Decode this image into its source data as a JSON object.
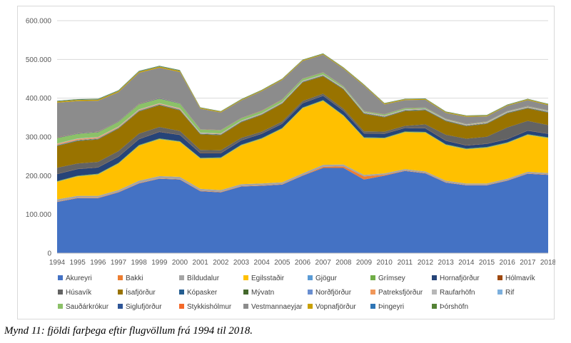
{
  "caption": "Mynd 11: fjöldi farþega eftir flugvöllum frá 1994 til 2018.",
  "chart_data": {
    "type": "area",
    "stacked": true,
    "title": "",
    "xlabel": "",
    "ylabel": "",
    "ylim": [
      0,
      600000
    ],
    "y_ticks": [
      0,
      100000,
      200000,
      300000,
      400000,
      500000,
      600000
    ],
    "y_tick_labels": [
      "0",
      "100.000",
      "200.000",
      "300.000",
      "400.000",
      "500.000",
      "600.000"
    ],
    "categories": [
      "1994",
      "1995",
      "1996",
      "1997",
      "1998",
      "1999",
      "2000",
      "2001",
      "2002",
      "2003",
      "2004",
      "2005",
      "2006",
      "2007",
      "2008",
      "2009",
      "2010",
      "2011",
      "2012",
      "2013",
      "2014",
      "2015",
      "2016",
      "2017",
      "2018"
    ],
    "grid": true,
    "legend_position": "bottom",
    "series": [
      {
        "name": "Akureyri",
        "color": "#4472C4",
        "values": [
          132000,
          142000,
          142000,
          157000,
          180000,
          192000,
          190000,
          160000,
          157000,
          172000,
          174000,
          177000,
          200000,
          220000,
          220000,
          190000,
          200000,
          212000,
          206000,
          182000,
          175000,
          175000,
          187000,
          205000,
          202000
        ]
      },
      {
        "name": "Bakki",
        "color": "#ED7D31",
        "values": [
          1000,
          1000,
          1000,
          1000,
          1000,
          1000,
          1000,
          1000,
          1000,
          1000,
          1000,
          1000,
          1000,
          3000,
          4000,
          8000,
          2000,
          1000,
          1000,
          1000,
          1000,
          1000,
          1000,
          1000,
          1000
        ]
      },
      {
        "name": "Bíldudalur",
        "color": "#A5A5A5",
        "values": [
          6000,
          5000,
          5000,
          5000,
          6000,
          6000,
          6000,
          5000,
          5000,
          5000,
          5000,
          5000,
          5000,
          5000,
          5000,
          4000,
          4000,
          4000,
          4000,
          4000,
          4000,
          4000,
          4000,
          4000,
          4000
        ]
      },
      {
        "name": "Egilsstaðir",
        "color": "#FFC000",
        "values": [
          45000,
          50000,
          55000,
          68000,
          90000,
          95000,
          90000,
          78000,
          82000,
          100000,
          115000,
          138000,
          168000,
          165000,
          125000,
          95000,
          90000,
          95000,
          100000,
          92000,
          88000,
          92000,
          92000,
          95000,
          90000
        ]
      },
      {
        "name": "Gjögur",
        "color": "#5B9BD5",
        "values": [
          500,
          500,
          500,
          500,
          500,
          500,
          500,
          500,
          500,
          500,
          500,
          500,
          500,
          500,
          500,
          500,
          500,
          500,
          500,
          500,
          500,
          500,
          500,
          500,
          500
        ]
      },
      {
        "name": "Grímsey",
        "color": "#70AD47",
        "values": [
          1500,
          1500,
          1500,
          1500,
          1500,
          1500,
          1500,
          1500,
          1500,
          1500,
          1500,
          1500,
          1500,
          1500,
          1500,
          1500,
          1500,
          1500,
          1500,
          1500,
          1500,
          1500,
          1500,
          1500,
          1500
        ]
      },
      {
        "name": "Hornafjörður",
        "color": "#264478",
        "values": [
          18000,
          17000,
          16000,
          16000,
          15000,
          17000,
          16000,
          12000,
          11000,
          11000,
          11000,
          11000,
          11000,
          11000,
          11000,
          10000,
          10000,
          9000,
          9000,
          9000,
          8000,
          8000,
          8000,
          9000,
          9000
        ]
      },
      {
        "name": "Hólmavík",
        "color": "#9E480E",
        "values": [
          500,
          500,
          500,
          500,
          500,
          500,
          500,
          500,
          500,
          500,
          500,
          500,
          500,
          500,
          500,
          500,
          500,
          500,
          500,
          500,
          500,
          500,
          500,
          500,
          500
        ]
      },
      {
        "name": "Húsavík",
        "color": "#636363",
        "values": [
          16000,
          14000,
          14000,
          14000,
          14000,
          12000,
          10000,
          8000,
          7000,
          6000,
          5000,
          5000,
          5000,
          5000,
          5000,
          5000,
          5000,
          5000,
          10000,
          15000,
          17000,
          18000,
          30000,
          25000,
          22000
        ]
      },
      {
        "name": "Ísafjörður",
        "color": "#997300",
        "values": [
          56000,
          58000,
          58000,
          58000,
          57000,
          56000,
          53000,
          40000,
          39000,
          40000,
          43000,
          46000,
          48000,
          45000,
          50000,
          45000,
          37000,
          38000,
          36000,
          35000,
          32000,
          33000,
          36000,
          32000,
          32000
        ]
      },
      {
        "name": "Kópasker",
        "color": "#255E91",
        "values": [
          500,
          500,
          500,
          500,
          500,
          500,
          500,
          500,
          500,
          500,
          500,
          500,
          500,
          500,
          500,
          500,
          500,
          500,
          500,
          500,
          500,
          500,
          500,
          500,
          500
        ]
      },
      {
        "name": "Mývatn",
        "color": "#43682B",
        "values": [
          1000,
          1000,
          1000,
          1000,
          1000,
          1000,
          1000,
          1000,
          1000,
          1000,
          1000,
          1000,
          1000,
          1000,
          1000,
          1000,
          1000,
          1000,
          1000,
          1000,
          1000,
          1000,
          1000,
          1000,
          1000
        ]
      },
      {
        "name": "Norðfjörður",
        "color": "#698ED0",
        "values": [
          1000,
          1000,
          1000,
          1000,
          1000,
          1000,
          1000,
          1000,
          1000,
          1000,
          1000,
          1000,
          1000,
          1000,
          1000,
          1000,
          1000,
          1000,
          1000,
          1000,
          1000,
          1000,
          1000,
          1000,
          1000
        ]
      },
      {
        "name": "Patreksfjörður",
        "color": "#F1975A",
        "values": [
          3000,
          3000,
          3000,
          2000,
          2000,
          2000,
          2000,
          1000,
          1000,
          1000,
          1000,
          1000,
          1000,
          1000,
          1000,
          1000,
          1000,
          1000,
          1000,
          1000,
          1000,
          1000,
          1000,
          1000,
          1000
        ]
      },
      {
        "name": "Raufarhöfn",
        "color": "#B7B7B7",
        "values": [
          500,
          500,
          500,
          500,
          500,
          500,
          500,
          500,
          500,
          500,
          500,
          500,
          500,
          500,
          500,
          500,
          500,
          500,
          500,
          500,
          500,
          500,
          500,
          500,
          500
        ]
      },
      {
        "name": "Rif",
        "color": "#7CAFDD",
        "values": [
          500,
          500,
          500,
          500,
          500,
          500,
          500,
          500,
          500,
          500,
          500,
          500,
          500,
          500,
          500,
          500,
          500,
          500,
          500,
          500,
          500,
          500,
          500,
          500,
          500
        ]
      },
      {
        "name": "Sauðárkrókur",
        "color": "#8CC168",
        "values": [
          14000,
          12000,
          12000,
          12000,
          13000,
          12000,
          12000,
          8000,
          8000,
          6000,
          6000,
          6000,
          5000,
          5000,
          3000,
          2000,
          3000,
          3000,
          2000,
          1000,
          1000,
          1000,
          1000,
          1000,
          1000
        ]
      },
      {
        "name": "Siglufjörður",
        "color": "#2E5597",
        "values": [
          1000,
          1000,
          1000,
          1000,
          1000,
          1000,
          1000,
          500,
          500,
          500,
          500,
          500,
          500,
          500,
          500,
          500,
          500,
          500,
          500,
          500,
          500,
          500,
          500,
          500,
          500
        ]
      },
      {
        "name": "Stykkishólmur",
        "color": "#F4692A",
        "values": [
          500,
          500,
          500,
          500,
          500,
          500,
          500,
          500,
          500,
          500,
          500,
          500,
          500,
          500,
          500,
          500,
          500,
          500,
          500,
          500,
          500,
          500,
          500,
          500,
          500
        ]
      },
      {
        "name": "Vestmannaeyjar",
        "color": "#8C8C8C",
        "values": [
          90000,
          83000,
          80000,
          75000,
          80000,
          78000,
          80000,
          53000,
          45000,
          45000,
          50000,
          50000,
          45000,
          45000,
          45000,
          65000,
          25000,
          20000,
          20000,
          15000,
          18000,
          13000,
          13000,
          15000,
          13000
        ]
      },
      {
        "name": "Vopnafjörður",
        "color": "#C9A000",
        "values": [
          3000,
          3000,
          3000,
          3000,
          3000,
          3000,
          3000,
          2000,
          2000,
          2000,
          2000,
          2000,
          2000,
          2000,
          2000,
          2000,
          2000,
          2000,
          2000,
          2000,
          2000,
          2000,
          2000,
          2000,
          2000
        ]
      },
      {
        "name": "Þingeyri",
        "color": "#2E75B6",
        "values": [
          1000,
          1000,
          1000,
          1000,
          1000,
          1000,
          1000,
          500,
          500,
          500,
          500,
          500,
          500,
          500,
          500,
          500,
          500,
          500,
          500,
          500,
          500,
          500,
          500,
          500,
          500
        ]
      },
      {
        "name": "Þórshöfn",
        "color": "#548235",
        "values": [
          1000,
          1000,
          1000,
          1000,
          1000,
          1000,
          1000,
          1000,
          1000,
          1000,
          1000,
          1000,
          1000,
          1000,
          1000,
          1000,
          1000,
          1000,
          1000,
          1000,
          1000,
          1000,
          1000,
          1000,
          1000
        ]
      }
    ]
  }
}
